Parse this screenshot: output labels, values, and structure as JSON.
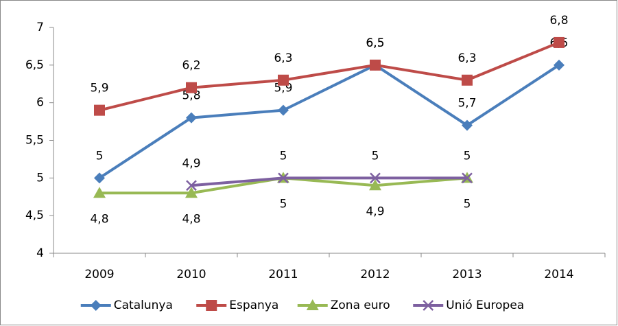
{
  "chart_data": {
    "type": "line",
    "categories": [
      "2009",
      "2010",
      "2011",
      "2012",
      "2013",
      "2014"
    ],
    "series": [
      {
        "name": "Catalunya",
        "color": "#4a7ebb",
        "marker": "diamond",
        "label_position": "above",
        "values": [
          5,
          5.8,
          5.9,
          6.5,
          5.7,
          6.5
        ],
        "value_labels": [
          "5",
          "5,8",
          "5,9",
          "6,5",
          "5,7",
          "6,5"
        ]
      },
      {
        "name": "Espanya",
        "color": "#be4b48",
        "marker": "square",
        "label_position": "above",
        "values": [
          5.9,
          6.2,
          6.3,
          6.5,
          6.3,
          6.8
        ],
        "value_labels": [
          "5,9",
          "6,2",
          "6,3",
          "6,5",
          "6,3",
          "6,8"
        ]
      },
      {
        "name": "Zona euro",
        "color": "#98b954",
        "marker": "triangle",
        "label_position": "below",
        "values": [
          4.8,
          4.8,
          5,
          4.9,
          5,
          null
        ],
        "value_labels": [
          "4,8",
          "4,8",
          "5",
          "4,9",
          "5",
          null
        ]
      },
      {
        "name": "Unió Europea",
        "color": "#7d60a0",
        "marker": "x",
        "label_position": "above",
        "values": [
          null,
          4.9,
          5,
          5,
          5,
          null
        ],
        "value_labels": [
          null,
          "4,9",
          "5",
          "5",
          "5",
          null
        ]
      }
    ],
    "ylim": [
      4,
      7
    ],
    "yticks": [
      4,
      {
        "value": 4.5,
        "label": "4,5"
      },
      5,
      {
        "value": 5.5,
        "label": "5,5"
      },
      6,
      {
        "value": 6.5,
        "label": "6,5"
      },
      7
    ],
    "grid": false,
    "legend": "bottom"
  }
}
